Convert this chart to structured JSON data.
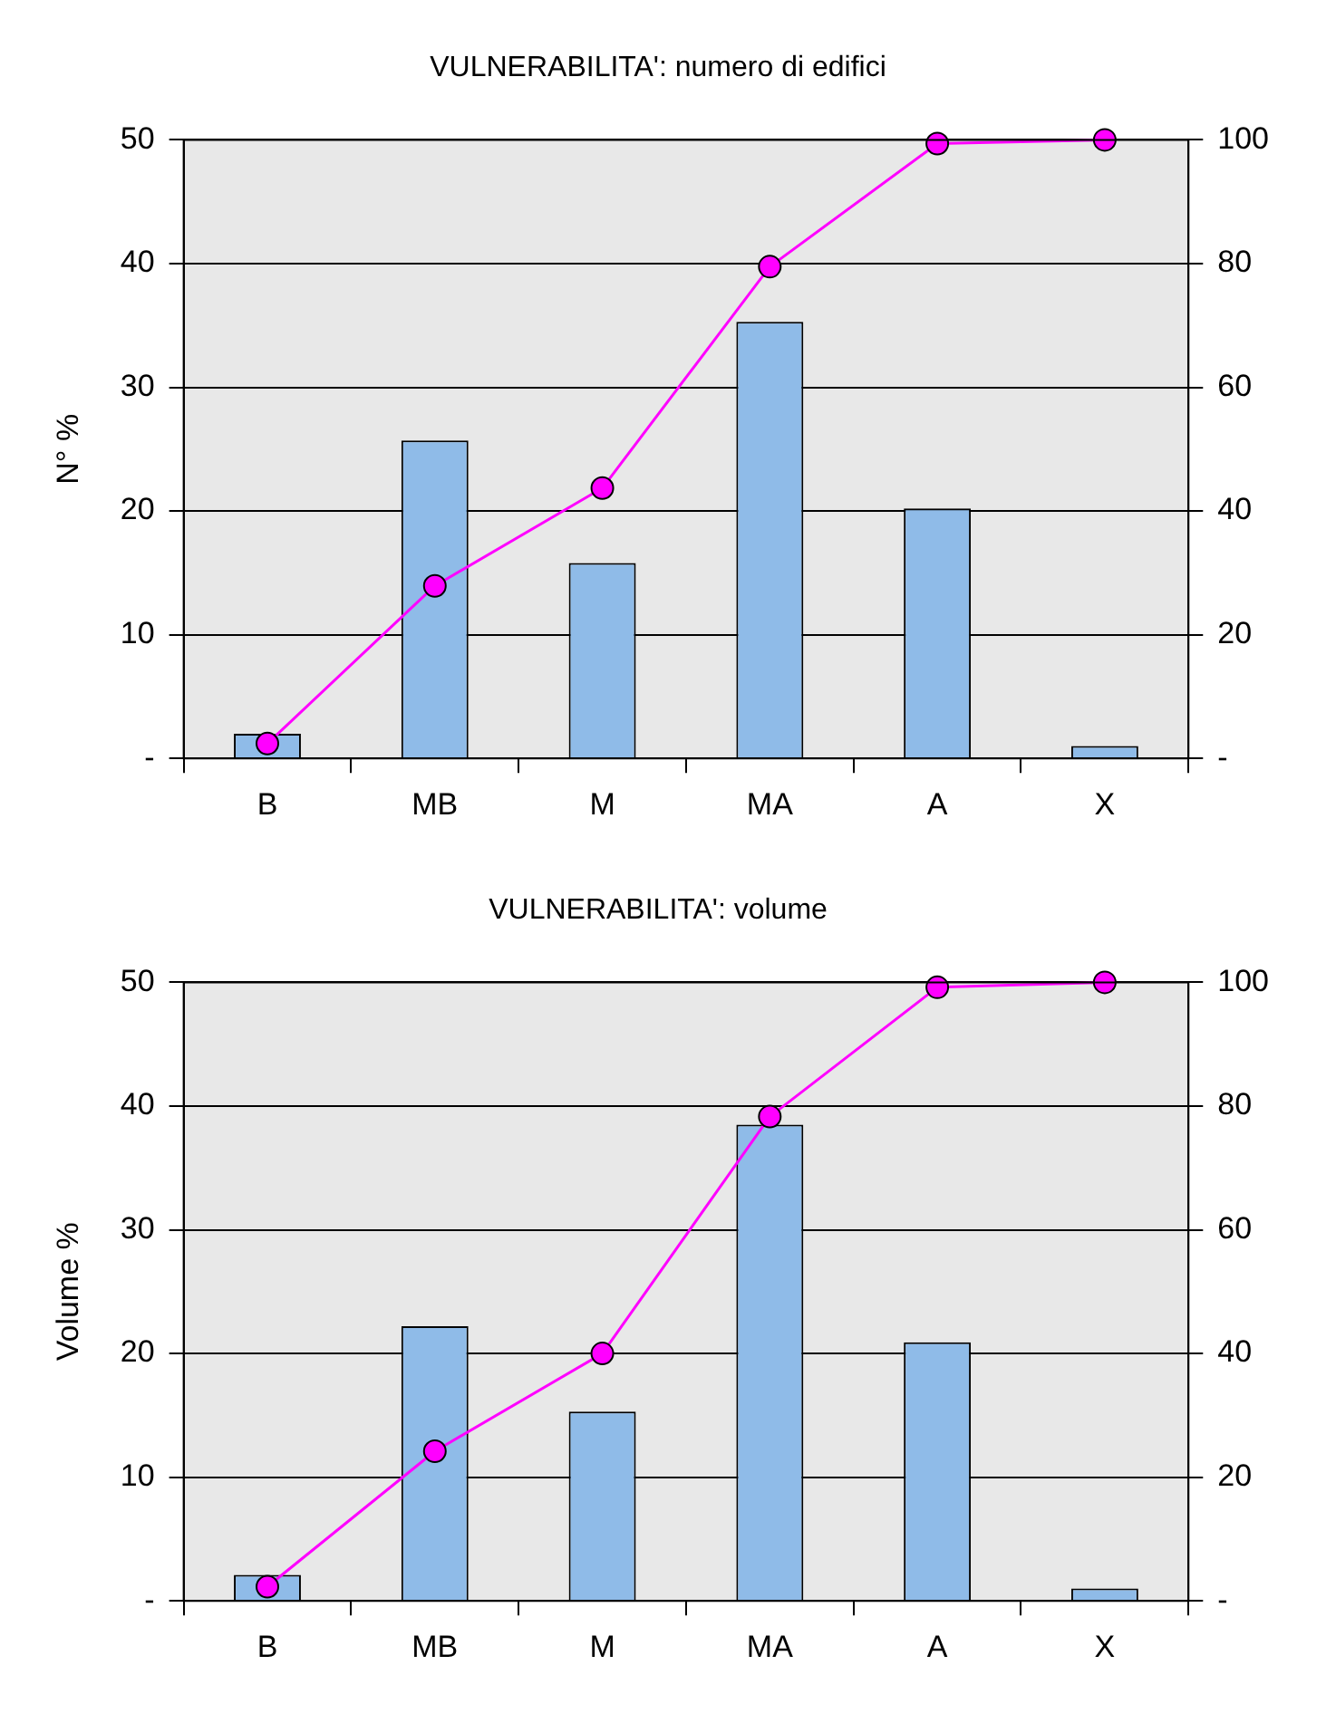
{
  "chart_data": [
    {
      "type": "bar",
      "title": "VULNERABILITA': numero di edifici",
      "ylabel": "N° %",
      "categories": [
        "B",
        "MB",
        "M",
        "MA",
        "A",
        "X"
      ],
      "series": [
        {
          "color": "#8fbbe8",
          "values": [
            2.0,
            25.7,
            15.8,
            35.3,
            20.2,
            1.0
          ]
        },
        {
          "type": "line",
          "axis": "y2",
          "color": "#ff00ff",
          "marker": "circle",
          "values": [
            2.4,
            27.9,
            43.7,
            79.5,
            99.4,
            100
          ]
        }
      ],
      "ylim": [
        0,
        50
      ],
      "yticks": [
        {
          "value": 0,
          "label": "-"
        },
        10,
        20,
        30,
        40,
        50
      ],
      "y2lim": [
        0,
        100
      ],
      "y2ticks": [
        {
          "value": 0,
          "label": "-"
        },
        20,
        40,
        60,
        80,
        100
      ],
      "grid": "y"
    },
    {
      "type": "bar",
      "title": "VULNERABILITA': volume",
      "ylabel": "Volume %",
      "categories": [
        "B",
        "MB",
        "M",
        "MA",
        "A",
        "X"
      ],
      "series": [
        {
          "color": "#8fbbe8",
          "values": [
            2.1,
            22.2,
            15.3,
            38.5,
            20.9,
            1.0
          ]
        },
        {
          "type": "line",
          "axis": "y2",
          "color": "#ff00ff",
          "marker": "circle",
          "values": [
            2.3,
            24.2,
            40.0,
            78.3,
            99.2,
            100
          ]
        }
      ],
      "ylim": [
        0,
        50
      ],
      "yticks": [
        {
          "value": 0,
          "label": "-"
        },
        10,
        20,
        30,
        40,
        50
      ],
      "y2lim": [
        0,
        100
      ],
      "y2ticks": [
        {
          "value": 0,
          "label": "-"
        },
        20,
        40,
        60,
        80,
        100
      ],
      "grid": "y"
    }
  ]
}
